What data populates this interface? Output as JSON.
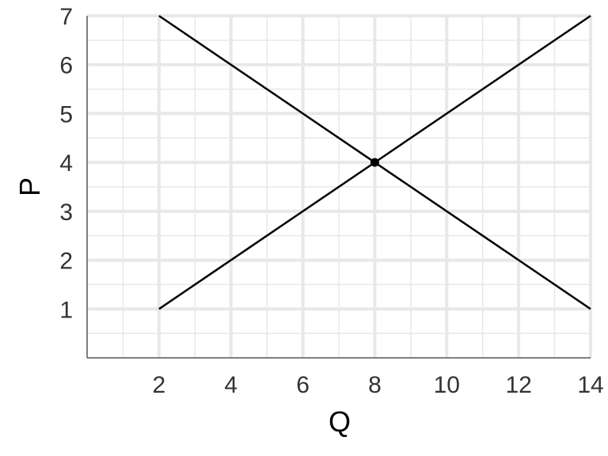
{
  "chart_data": {
    "type": "line",
    "xlabel": "Q",
    "ylabel": "P",
    "xlim": [
      0,
      14
    ],
    "ylim": [
      0,
      7
    ],
    "x_ticks": [
      "2",
      "4",
      "6",
      "8",
      "10",
      "12",
      "14"
    ],
    "y_ticks": [
      "1",
      "2",
      "3",
      "4",
      "5",
      "6",
      "7"
    ],
    "grid": true,
    "series": [
      {
        "x": [
          2,
          14
        ],
        "y": [
          7,
          1
        ]
      },
      {
        "x": [
          2,
          14
        ],
        "y": [
          1,
          7
        ]
      }
    ],
    "points": [
      {
        "x": 8,
        "y": 4
      }
    ],
    "colors": {
      "line": "#000000",
      "grid": "#e8e8e8",
      "axis": "#555555",
      "tick_text": "#333333"
    }
  }
}
